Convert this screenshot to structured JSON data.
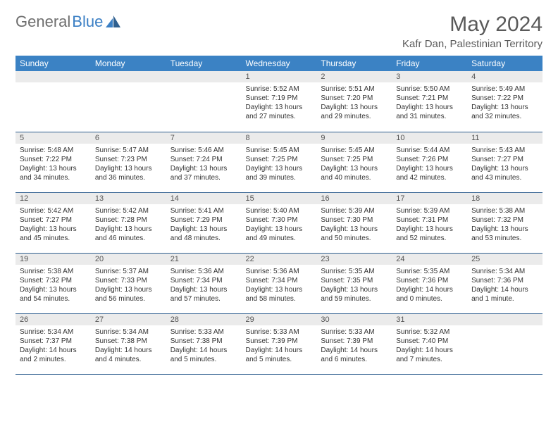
{
  "brand": {
    "part1": "General",
    "part2": "Blue"
  },
  "title": "May 2024",
  "location": "Kafr Dan, Palestinian Territory",
  "colors": {
    "header_bg": "#3b82c4",
    "header_text": "#ffffff",
    "daynum_bg": "#ebebeb",
    "row_border": "#2f5f8f",
    "brand_gray": "#6e6e6e",
    "brand_blue": "#3b7fc4"
  },
  "weekdays": [
    "Sunday",
    "Monday",
    "Tuesday",
    "Wednesday",
    "Thursday",
    "Friday",
    "Saturday"
  ],
  "grid": [
    [
      null,
      null,
      null,
      {
        "n": "1",
        "sr": "5:52 AM",
        "ss": "7:19 PM",
        "dl": "13 hours and 27 minutes."
      },
      {
        "n": "2",
        "sr": "5:51 AM",
        "ss": "7:20 PM",
        "dl": "13 hours and 29 minutes."
      },
      {
        "n": "3",
        "sr": "5:50 AM",
        "ss": "7:21 PM",
        "dl": "13 hours and 31 minutes."
      },
      {
        "n": "4",
        "sr": "5:49 AM",
        "ss": "7:22 PM",
        "dl": "13 hours and 32 minutes."
      }
    ],
    [
      {
        "n": "5",
        "sr": "5:48 AM",
        "ss": "7:22 PM",
        "dl": "13 hours and 34 minutes."
      },
      {
        "n": "6",
        "sr": "5:47 AM",
        "ss": "7:23 PM",
        "dl": "13 hours and 36 minutes."
      },
      {
        "n": "7",
        "sr": "5:46 AM",
        "ss": "7:24 PM",
        "dl": "13 hours and 37 minutes."
      },
      {
        "n": "8",
        "sr": "5:45 AM",
        "ss": "7:25 PM",
        "dl": "13 hours and 39 minutes."
      },
      {
        "n": "9",
        "sr": "5:45 AM",
        "ss": "7:25 PM",
        "dl": "13 hours and 40 minutes."
      },
      {
        "n": "10",
        "sr": "5:44 AM",
        "ss": "7:26 PM",
        "dl": "13 hours and 42 minutes."
      },
      {
        "n": "11",
        "sr": "5:43 AM",
        "ss": "7:27 PM",
        "dl": "13 hours and 43 minutes."
      }
    ],
    [
      {
        "n": "12",
        "sr": "5:42 AM",
        "ss": "7:27 PM",
        "dl": "13 hours and 45 minutes."
      },
      {
        "n": "13",
        "sr": "5:42 AM",
        "ss": "7:28 PM",
        "dl": "13 hours and 46 minutes."
      },
      {
        "n": "14",
        "sr": "5:41 AM",
        "ss": "7:29 PM",
        "dl": "13 hours and 48 minutes."
      },
      {
        "n": "15",
        "sr": "5:40 AM",
        "ss": "7:30 PM",
        "dl": "13 hours and 49 minutes."
      },
      {
        "n": "16",
        "sr": "5:39 AM",
        "ss": "7:30 PM",
        "dl": "13 hours and 50 minutes."
      },
      {
        "n": "17",
        "sr": "5:39 AM",
        "ss": "7:31 PM",
        "dl": "13 hours and 52 minutes."
      },
      {
        "n": "18",
        "sr": "5:38 AM",
        "ss": "7:32 PM",
        "dl": "13 hours and 53 minutes."
      }
    ],
    [
      {
        "n": "19",
        "sr": "5:38 AM",
        "ss": "7:32 PM",
        "dl": "13 hours and 54 minutes."
      },
      {
        "n": "20",
        "sr": "5:37 AM",
        "ss": "7:33 PM",
        "dl": "13 hours and 56 minutes."
      },
      {
        "n": "21",
        "sr": "5:36 AM",
        "ss": "7:34 PM",
        "dl": "13 hours and 57 minutes."
      },
      {
        "n": "22",
        "sr": "5:36 AM",
        "ss": "7:34 PM",
        "dl": "13 hours and 58 minutes."
      },
      {
        "n": "23",
        "sr": "5:35 AM",
        "ss": "7:35 PM",
        "dl": "13 hours and 59 minutes."
      },
      {
        "n": "24",
        "sr": "5:35 AM",
        "ss": "7:36 PM",
        "dl": "14 hours and 0 minutes."
      },
      {
        "n": "25",
        "sr": "5:34 AM",
        "ss": "7:36 PM",
        "dl": "14 hours and 1 minute."
      }
    ],
    [
      {
        "n": "26",
        "sr": "5:34 AM",
        "ss": "7:37 PM",
        "dl": "14 hours and 2 minutes."
      },
      {
        "n": "27",
        "sr": "5:34 AM",
        "ss": "7:38 PM",
        "dl": "14 hours and 4 minutes."
      },
      {
        "n": "28",
        "sr": "5:33 AM",
        "ss": "7:38 PM",
        "dl": "14 hours and 5 minutes."
      },
      {
        "n": "29",
        "sr": "5:33 AM",
        "ss": "7:39 PM",
        "dl": "14 hours and 5 minutes."
      },
      {
        "n": "30",
        "sr": "5:33 AM",
        "ss": "7:39 PM",
        "dl": "14 hours and 6 minutes."
      },
      {
        "n": "31",
        "sr": "5:32 AM",
        "ss": "7:40 PM",
        "dl": "14 hours and 7 minutes."
      },
      null
    ]
  ],
  "labels": {
    "sunrise": "Sunrise:",
    "sunset": "Sunset:",
    "daylight": "Daylight:"
  }
}
